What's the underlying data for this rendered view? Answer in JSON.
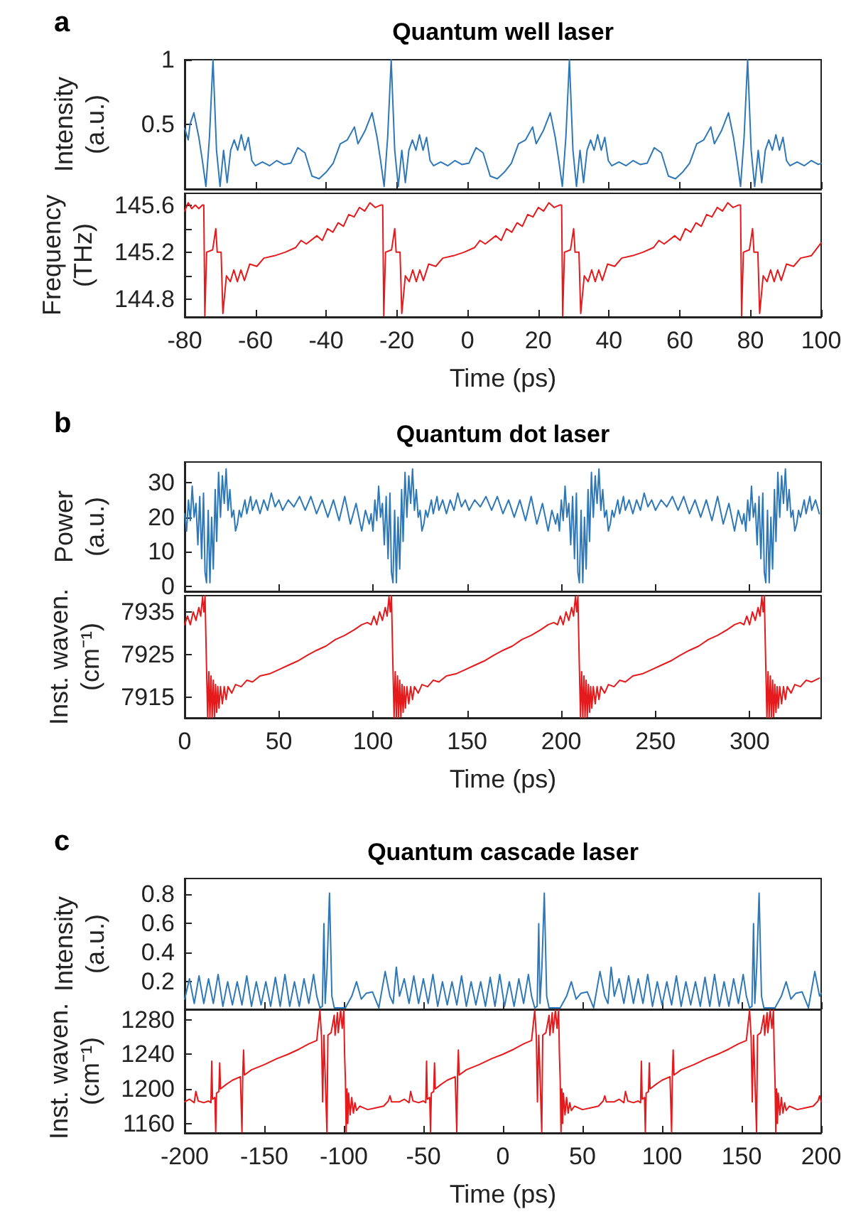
{
  "chart_data": [
    {
      "type": "line",
      "title": "Quantum well laser",
      "annotations": [
        "a"
      ],
      "ylabel": "Intensity (a.u.)",
      "xlim": [
        -80,
        100
      ],
      "xticks": [
        -80,
        -60,
        -40,
        -20,
        0,
        20,
        40,
        60,
        80,
        100
      ],
      "ylim": [
        0,
        1
      ],
      "yticks": [
        0.5,
        1
      ],
      "tick_labels": "y",
      "series": [
        {
          "color": "#2e78b7",
          "x": [
            -80,
            -79,
            -78.5,
            -77.4,
            -76,
            -75,
            -74,
            -73,
            -72,
            -71,
            -70,
            -69,
            -68,
            -67,
            -66,
            -65,
            -64,
            -63,
            -62,
            -61,
            -60,
            -58,
            -56,
            -54,
            -52,
            -50,
            -48,
            -46,
            -44,
            -42,
            -40,
            -38,
            -36,
            -34,
            -32,
            -31,
            -29,
            -27.0,
            -25.6,
            -24.6,
            -23.6,
            -22.6,
            -21.6,
            -20.6,
            -19.6,
            -18.6,
            -17.6,
            -16.6,
            -15.6,
            -14.6,
            -13.6,
            -12.6,
            -11.6,
            -10.6,
            -9.6,
            -7.6,
            -5.6,
            -3.6,
            -1.6,
            0.4,
            2.4,
            4.4,
            6.4,
            8.4,
            10.4,
            12.4,
            14.4,
            16.4,
            18.4,
            19.4,
            21.4,
            23.4,
            24.8,
            25.8,
            26.8,
            27.8,
            28.8,
            29.8,
            30.8,
            31.8,
            32.8,
            33.8,
            34.8,
            35.8,
            36.8,
            37.8,
            38.8,
            39.8,
            40.8,
            42.8,
            44.8,
            46.8,
            48.8,
            50.8,
            52.8,
            54.8,
            56.8,
            58.8,
            60.8,
            62.8,
            64.8,
            66.8,
            68.8,
            69.8,
            71.8,
            73.8,
            75.2,
            76.2,
            77.2,
            78.2,
            79.2,
            80.2,
            81.2,
            82.2,
            83.2,
            84.2,
            85.2,
            86.2,
            87.2,
            88.2,
            89.2,
            90.2,
            91.2,
            93.2,
            95.2,
            97.2,
            99.2,
            100
          ],
          "values": [
            0.47,
            0.38,
            0.5,
            0.59,
            0.4,
            0.22,
            0.02,
            0.4,
            1.0,
            0.3,
            0.02,
            0.3,
            0.05,
            0.3,
            0.38,
            0.3,
            0.42,
            0.3,
            0.4,
            0.22,
            0.18,
            0.21,
            0.18,
            0.22,
            0.19,
            0.2,
            0.32,
            0.28,
            0.1,
            0.08,
            0.13,
            0.2,
            0.35,
            0.38,
            0.48,
            0.35,
            0.45,
            0.59,
            0.4,
            0.22,
            0.02,
            0.4,
            1.0,
            0.3,
            0.02,
            0.3,
            0.05,
            0.3,
            0.38,
            0.3,
            0.42,
            0.3,
            0.4,
            0.22,
            0.18,
            0.21,
            0.18,
            0.22,
            0.19,
            0.2,
            0.32,
            0.28,
            0.1,
            0.08,
            0.13,
            0.2,
            0.35,
            0.38,
            0.48,
            0.35,
            0.45,
            0.59,
            0.4,
            0.22,
            0.02,
            0.4,
            1.0,
            0.3,
            0.02,
            0.3,
            0.05,
            0.3,
            0.38,
            0.3,
            0.42,
            0.3,
            0.4,
            0.22,
            0.18,
            0.21,
            0.18,
            0.22,
            0.19,
            0.2,
            0.32,
            0.28,
            0.1,
            0.08,
            0.13,
            0.2,
            0.35,
            0.38,
            0.48,
            0.35,
            0.45,
            0.59,
            0.4,
            0.22,
            0.02,
            0.4,
            1.0,
            0.3,
            0.02,
            0.3,
            0.05,
            0.3,
            0.38,
            0.3,
            0.42,
            0.3,
            0.4,
            0.22,
            0.18,
            0.21,
            0.18,
            0.22,
            0.19,
            0.2
          ]
        }
      ]
    },
    {
      "type": "line",
      "ylabel": "Frequency (THz)",
      "xlabel": "Time (ps)",
      "xlim": [
        -80,
        100
      ],
      "xticks": [
        -80,
        -60,
        -40,
        -20,
        0,
        20,
        40,
        60,
        80,
        100
      ],
      "ylim": [
        144.65,
        145.7
      ],
      "yticks": [
        144.8,
        {
          "value": 145,
          "label": null
        },
        145.2,
        {
          "value": 145.4,
          "label": null
        },
        145.6
      ],
      "series": [
        {
          "color": "#e41a1c",
          "x": [
            -80,
            -79,
            -78,
            -77,
            -76,
            -75,
            -74.6,
            -74.3,
            -73.8,
            -72.1,
            -71.2,
            -70.8,
            -69.7,
            -69.2,
            -68.2,
            -67.1,
            -66.1,
            -65.1,
            -64.1,
            -63.1,
            -61.6,
            -59.6,
            -57.6,
            -54.6,
            -51.6,
            -48.6,
            -47.1,
            -45.6,
            -42.6,
            -41.1,
            -39.6,
            -38.1,
            -36.6,
            -35.1,
            -33.6,
            -32.1,
            -30.6,
            -29.1,
            -27.6,
            -26.1,
            -24.6,
            -24.0,
            -23.7,
            -23.2,
            -21.5,
            -20.6,
            -20.2,
            -19.1,
            -18.6,
            -17.6,
            -16.5,
            -15.5,
            -14.5,
            -13.5,
            -12.5,
            -11.0,
            -9.0,
            -7.0,
            -4.0,
            -1.0,
            2.0,
            3.5,
            5.0,
            8.0,
            9.5,
            11.0,
            12.5,
            14.0,
            15.5,
            17.0,
            18.5,
            20.0,
            21.5,
            23.0,
            24.5,
            26.0,
            26.6,
            26.9,
            27.4,
            29.1,
            30.0,
            30.4,
            31.5,
            32.0,
            33.0,
            34.1,
            35.1,
            36.1,
            37.1,
            38.1,
            39.6,
            41.6,
            43.6,
            46.6,
            49.6,
            52.6,
            54.1,
            55.6,
            58.6,
            60.1,
            61.6,
            63.1,
            64.6,
            66.1,
            67.6,
            69.1,
            70.6,
            72.1,
            73.6,
            75.1,
            76.6,
            77.2,
            77.5,
            78.0,
            79.7,
            80.6,
            81.0,
            82.1,
            82.6,
            83.6,
            84.7,
            85.7,
            86.7,
            87.7,
            88.7,
            90.2,
            92.2,
            94.2,
            97.2,
            100
          ],
          "values": [
            145.55,
            145.62,
            145.57,
            145.6,
            145.57,
            145.6,
            145.6,
            144.66,
            145.2,
            145.22,
            145.4,
            145.2,
            145.2,
            144.68,
            145.0,
            144.95,
            145.05,
            144.95,
            145.05,
            144.96,
            145.1,
            145.08,
            145.15,
            145.17,
            145.2,
            145.24,
            145.3,
            145.27,
            145.34,
            145.3,
            145.4,
            145.37,
            145.45,
            145.42,
            145.52,
            145.5,
            145.58,
            145.55,
            145.62,
            145.58,
            145.6,
            145.6,
            144.66,
            145.2,
            145.22,
            145.4,
            145.2,
            145.2,
            144.68,
            145.0,
            144.95,
            145.05,
            144.95,
            145.05,
            144.96,
            145.1,
            145.08,
            145.15,
            145.17,
            145.2,
            145.24,
            145.3,
            145.27,
            145.34,
            145.3,
            145.4,
            145.37,
            145.45,
            145.42,
            145.52,
            145.5,
            145.58,
            145.55,
            145.62,
            145.58,
            145.6,
            145.6,
            144.66,
            145.2,
            145.22,
            145.4,
            145.2,
            145.2,
            144.68,
            145.0,
            144.95,
            145.05,
            144.95,
            145.05,
            144.96,
            145.1,
            145.08,
            145.15,
            145.17,
            145.2,
            145.24,
            145.3,
            145.27,
            145.34,
            145.3,
            145.4,
            145.37,
            145.45,
            145.42,
            145.52,
            145.5,
            145.58,
            145.55,
            145.62,
            145.58,
            145.6,
            145.6,
            144.66,
            145.2,
            145.22,
            145.4,
            145.2,
            145.2,
            144.68,
            145.0,
            144.95,
            145.05,
            144.95,
            145.05,
            144.96,
            145.1,
            145.08,
            145.15,
            145.17,
            145.28
          ]
        }
      ]
    },
    {
      "type": "line",
      "title": "Quantum dot laser",
      "annotations": [
        "b"
      ],
      "ylabel": "Power (a.u.)",
      "xlim": [
        0,
        338
      ],
      "xticks": [
        0,
        50,
        100,
        150,
        200,
        250,
        300
      ],
      "ylim": [
        -1.5,
        36
      ],
      "yticks": [
        0,
        10,
        20,
        30
      ],
      "tick_labels": "y",
      "series": [
        {
          "color": "#2e78b7",
          "x": [
            0,
            1,
            2,
            3,
            4,
            5,
            6,
            7,
            8,
            9,
            10,
            10.8,
            11.6,
            12.5,
            13.4,
            14.3,
            15.2,
            16.2,
            17,
            18,
            19,
            20,
            21,
            22,
            23,
            24,
            25,
            26,
            27,
            28,
            29,
            30,
            32,
            33,
            35,
            36,
            38,
            40,
            42,
            44,
            46,
            48,
            50,
            52,
            55,
            58,
            61,
            64,
            67,
            70,
            73,
            76,
            79,
            82,
            85,
            88,
            91,
            94,
            96,
            98,
            99,
            100,
            101,
            102,
            103,
            104,
            105,
            106,
            107,
            108,
            109,
            109.8,
            110.6,
            111.5,
            112.4,
            113.3,
            114.2,
            115.2,
            116,
            117,
            118,
            119,
            120,
            121,
            122,
            123,
            124,
            125,
            126,
            127,
            128,
            129,
            131,
            132,
            134,
            135,
            137,
            139,
            141,
            143,
            145,
            147,
            149,
            151,
            154,
            157,
            160,
            163,
            166,
            169,
            172,
            175,
            178,
            181,
            184,
            187,
            190,
            193,
            195,
            197,
            198,
            199,
            200,
            201,
            202,
            203,
            204,
            205,
            206,
            207,
            208,
            208.8,
            209.6,
            210.5,
            211.4,
            212.3,
            213.2,
            214.2,
            215,
            216,
            217,
            218,
            219,
            220,
            221,
            222,
            223,
            224,
            225,
            226,
            227,
            228,
            230,
            231,
            233,
            234,
            236,
            238,
            240,
            242,
            244,
            246,
            248,
            250,
            253,
            256,
            259,
            262,
            265,
            268,
            271,
            274,
            277,
            280,
            283,
            286,
            289,
            292,
            294,
            296,
            297,
            298,
            299,
            300,
            301,
            302,
            303,
            304,
            305,
            306,
            307,
            307.8,
            308.6,
            309.5,
            310.4,
            311.3,
            312.2,
            313.2,
            314,
            315,
            316,
            317,
            318,
            319,
            320,
            321,
            322,
            323,
            324,
            325,
            326,
            327,
            329,
            330,
            332,
            333,
            335,
            337
          ],
          "values": [
            21,
            16,
            25,
            19,
            29,
            20,
            24,
            12,
            26,
            8,
            27,
            4,
            1,
            22,
            1,
            20,
            5,
            28,
            13,
            33,
            20,
            32,
            24,
            34,
            22,
            28,
            20,
            22,
            16,
            18,
            22,
            20,
            25,
            21,
            26,
            22,
            25,
            21,
            25,
            22,
            27,
            23,
            25,
            22,
            25,
            23,
            26,
            22,
            26,
            21,
            25,
            20,
            25,
            19,
            26,
            18,
            24,
            16,
            22,
            18,
            21,
            16,
            25,
            19,
            29,
            20,
            24,
            12,
            26,
            8,
            27,
            4,
            1,
            22,
            1,
            20,
            5,
            28,
            13,
            33,
            20,
            32,
            24,
            34,
            22,
            28,
            20,
            22,
            16,
            18,
            22,
            20,
            25,
            21,
            26,
            22,
            25,
            21,
            25,
            22,
            27,
            23,
            25,
            22,
            25,
            23,
            26,
            22,
            26,
            21,
            25,
            20,
            25,
            19,
            26,
            18,
            24,
            16,
            22,
            18,
            21,
            16,
            25,
            19,
            29,
            20,
            24,
            12,
            26,
            8,
            27,
            4,
            1,
            22,
            1,
            20,
            5,
            28,
            13,
            33,
            20,
            32,
            24,
            34,
            22,
            28,
            20,
            22,
            16,
            18,
            22,
            20,
            25,
            21,
            26,
            22,
            25,
            21,
            25,
            22,
            27,
            23,
            25,
            22,
            25,
            23,
            26,
            22,
            26,
            21,
            25,
            20,
            25,
            19,
            26,
            18,
            24,
            16,
            22,
            18,
            21,
            16,
            25,
            19,
            29,
            20,
            24,
            12,
            26,
            8,
            27,
            4,
            1,
            22,
            1,
            20,
            5,
            28,
            13,
            33,
            20,
            32,
            24,
            34,
            22,
            28,
            20,
            22,
            16,
            18,
            22,
            20,
            25,
            21,
            26,
            22,
            25,
            21
          ]
        }
      ]
    },
    {
      "type": "line",
      "ylabel": "Inst. waven. (cm⁻¹)",
      "xlabel": "Time (ps)",
      "xlim": [
        0,
        338
      ],
      "xticks": [
        0,
        50,
        100,
        150,
        200,
        250,
        300
      ],
      "ylim": [
        7910.2,
        7938.8
      ],
      "yticks": [
        7915,
        7925,
        7935
      ],
      "series": [
        {
          "color": "#e41a1c",
          "x": [
            0,
            1.5,
            3,
            4.5,
            6,
            7.5,
            8.5,
            9.5,
            10.2,
            10.8,
            11.6,
            12.2,
            12.8,
            13.4,
            14,
            14.6,
            15.2,
            15.8,
            16.4,
            17,
            17.6,
            18.2,
            19,
            20,
            21,
            22,
            23,
            25,
            27,
            30,
            33,
            36,
            40,
            45,
            50,
            55,
            60,
            65,
            70,
            75,
            80,
            85,
            90,
            94,
            97,
            99,
            100.5,
            102,
            103.5,
            105,
            106.5,
            107.5,
            108.5,
            109.2,
            109.8,
            110.6,
            111.2,
            111.8,
            112.4,
            113,
            113.6,
            114.2,
            114.8,
            115.4,
            116,
            116.6,
            117.2,
            118,
            119,
            120,
            121,
            122,
            124,
            126,
            129,
            132,
            135,
            139,
            144,
            149,
            154,
            159,
            164,
            169,
            174,
            179,
            184,
            189,
            193,
            196,
            198,
            199.5,
            201,
            202.5,
            204,
            205.5,
            206.5,
            207.5,
            208.2,
            208.8,
            209.6,
            210.2,
            210.8,
            211.4,
            212,
            212.6,
            213.2,
            213.8,
            214.4,
            215,
            215.6,
            216.2,
            217,
            218,
            219,
            220,
            221,
            223,
            225,
            228,
            231,
            234,
            238,
            243,
            248,
            253,
            258,
            263,
            268,
            273,
            278,
            283,
            288,
            292,
            295,
            297,
            298.5,
            300,
            301.5,
            303,
            304.5,
            305.5,
            306.5,
            307.2,
            307.8,
            308.6,
            309.2,
            309.8,
            310.4,
            311,
            311.6,
            312.2,
            312.8,
            313.4,
            314,
            314.6,
            315.2,
            316,
            317,
            318,
            319,
            320,
            322,
            324,
            327,
            330,
            333,
            337
          ],
          "values": [
            7932,
            7934,
            7932,
            7935,
            7933,
            7936,
            7934,
            7938.5,
            7935,
            7938.7,
            7922,
            7910.3,
            7921,
            7910.3,
            7920,
            7910.3,
            7919,
            7910.5,
            7918,
            7911.5,
            7917.5,
            7912.5,
            7917.5,
            7913.5,
            7917.5,
            7914.5,
            7917.5,
            7916,
            7918,
            7917.5,
            7919,
            7918.6,
            7920,
            7920.5,
            7921.5,
            7922.5,
            7923.5,
            7924.8,
            7926,
            7927,
            7928.5,
            7929.5,
            7930.8,
            7932,
            7932.5,
            7932,
            7934,
            7932,
            7935,
            7933,
            7936,
            7934,
            7938.5,
            7935,
            7938.7,
            7922,
            7910.3,
            7921,
            7910.3,
            7920,
            7910.3,
            7919,
            7910.5,
            7918,
            7911.5,
            7917.5,
            7912.5,
            7917.5,
            7913.5,
            7917.5,
            7914.5,
            7917.5,
            7916,
            7918,
            7917.5,
            7919,
            7918.6,
            7920,
            7920.5,
            7921.5,
            7922.5,
            7923.5,
            7924.8,
            7926,
            7927,
            7928.5,
            7929.5,
            7930.8,
            7932,
            7932.5,
            7932,
            7934,
            7932,
            7935,
            7933,
            7936,
            7934,
            7938.5,
            7935,
            7938.7,
            7922,
            7910.3,
            7921,
            7910.3,
            7920,
            7910.3,
            7919,
            7910.5,
            7918,
            7911.5,
            7917.5,
            7912.5,
            7917.5,
            7913.5,
            7917.5,
            7914.5,
            7917.5,
            7916,
            7918,
            7917.5,
            7919,
            7918.6,
            7920,
            7920.5,
            7921.5,
            7922.5,
            7923.5,
            7924.8,
            7926,
            7927,
            7928.5,
            7929.5,
            7930.8,
            7932,
            7932.5,
            7932,
            7934,
            7932,
            7935,
            7933,
            7936,
            7934,
            7938.5,
            7935,
            7938.7,
            7922,
            7910.3,
            7921,
            7910.3,
            7920,
            7910.3,
            7919,
            7910.5,
            7918,
            7911.5,
            7917.5,
            7912.5,
            7917.5,
            7913.5,
            7917.5,
            7914.5,
            7917.5,
            7916,
            7918,
            7917.5,
            7919,
            7918.6,
            7919.5
          ]
        }
      ]
    },
    {
      "type": "line",
      "title": "Quantum cascade laser",
      "annotations": [
        "c"
      ],
      "ylabel": "Intensity (a.u.)",
      "xlim": [
        -200,
        200
      ],
      "xticks": [
        -200,
        -150,
        -100,
        -50,
        0,
        50,
        100,
        150,
        200
      ],
      "ylim": [
        0.01,
        0.91
      ],
      "yticks": [
        0.2,
        0.4,
        0.6,
        0.8
      ],
      "tick_labels": "y",
      "series": [
        {
          "color": "#2e78b7",
          "x": [
            -200,
            -197,
            -194,
            -191,
            -188,
            -185,
            -182,
            -179,
            -176,
            -173,
            -170,
            -167,
            -164,
            -161,
            -158,
            -155,
            -152,
            -149,
            -146,
            -143,
            -140,
            -137,
            -134,
            -131,
            -128,
            -125,
            -122,
            -119,
            -117,
            -115,
            -113.5,
            -112.5,
            -111.7,
            -110.5,
            -109,
            -107.5,
            -106,
            -99,
            -95,
            -92,
            -89,
            -86,
            -82,
            -78,
            -74,
            -71,
            -69,
            -67,
            -65,
            -62,
            -59,
            -56,
            -53,
            -50,
            -47,
            -44,
            -41,
            -38,
            -35,
            -32,
            -29,
            -26,
            -23,
            -20,
            -17,
            -14,
            -11,
            -8,
            -5,
            -2,
            1,
            4,
            7,
            10,
            13,
            16,
            18,
            20,
            21.5,
            22.5,
            23.3,
            24.5,
            26,
            27.5,
            29,
            36,
            40,
            43,
            46,
            49,
            53,
            57,
            61,
            64,
            66,
            68,
            70,
            73,
            76,
            79,
            82,
            85,
            88,
            91,
            94,
            97,
            100,
            103,
            106,
            109,
            112,
            115,
            118,
            121,
            124,
            127,
            130,
            133,
            136,
            139,
            142,
            145,
            148,
            151,
            153,
            155,
            156.5,
            157.5,
            158.3,
            159.5,
            161,
            162.5,
            164,
            171,
            175,
            178,
            181,
            184,
            188,
            192,
            196,
            199,
            200
          ],
          "values": [
            0.08,
            0.22,
            0.05,
            0.24,
            0.05,
            0.22,
            0.05,
            0.25,
            0.03,
            0.2,
            0.04,
            0.2,
            0.04,
            0.24,
            0.03,
            0.2,
            0.04,
            0.2,
            0.03,
            0.23,
            0.03,
            0.25,
            0.03,
            0.2,
            0.03,
            0.22,
            0.05,
            0.25,
            0.1,
            0.02,
            0.03,
            0.6,
            0.05,
            0.3,
            0.81,
            0.1,
            0.02,
            0.02,
            0.1,
            0.2,
            0.08,
            0.12,
            0.13,
            0.02,
            0.27,
            0.1,
            0.05,
            0.3,
            0.1,
            0.22,
            0.05,
            0.24,
            0.05,
            0.22,
            0.05,
            0.25,
            0.03,
            0.2,
            0.04,
            0.2,
            0.04,
            0.24,
            0.03,
            0.2,
            0.04,
            0.2,
            0.03,
            0.23,
            0.03,
            0.25,
            0.03,
            0.2,
            0.03,
            0.22,
            0.05,
            0.25,
            0.1,
            0.02,
            0.03,
            0.6,
            0.05,
            0.3,
            0.81,
            0.1,
            0.02,
            0.02,
            0.1,
            0.2,
            0.08,
            0.12,
            0.13,
            0.02,
            0.27,
            0.1,
            0.05,
            0.3,
            0.1,
            0.22,
            0.05,
            0.24,
            0.05,
            0.22,
            0.05,
            0.25,
            0.03,
            0.2,
            0.04,
            0.2,
            0.04,
            0.24,
            0.03,
            0.2,
            0.04,
            0.2,
            0.03,
            0.23,
            0.03,
            0.25,
            0.03,
            0.2,
            0.03,
            0.22,
            0.05,
            0.25,
            0.1,
            0.02,
            0.03,
            0.6,
            0.05,
            0.3,
            0.81,
            0.1,
            0.02,
            0.02,
            0.1,
            0.2,
            0.08,
            0.12,
            0.13,
            0.02,
            0.27,
            0.1,
            0.12
          ]
        }
      ]
    },
    {
      "type": "line",
      "ylabel": "Inst. waven. (cm⁻¹)",
      "xlabel": "Time (ps)",
      "xlim": [
        -200,
        200
      ],
      "xticks": [
        -200,
        -150,
        -100,
        -50,
        0,
        50,
        100,
        150,
        200
      ],
      "ylim": [
        1149,
        1292
      ],
      "yticks": [
        1160,
        1200,
        1240,
        1280
      ],
      "series": [
        {
          "color": "#e41a1c",
          "x": [
            -200,
            -197,
            -194,
            -193,
            -191.5,
            -188,
            -185,
            -183.5,
            -183,
            -182.5,
            -181,
            -180.5,
            -180,
            -178.5,
            -178,
            -177.5,
            -174,
            -170,
            -165,
            -164,
            -163.5,
            -163,
            -162.5,
            -158,
            -150,
            -142,
            -135,
            -128,
            -122,
            -117,
            -115,
            -114,
            -113.3,
            -112.5,
            -110.6,
            -110,
            -108,
            -106,
            -105.5,
            -104,
            -103.5,
            -102,
            -101,
            -100,
            -99.5,
            -99,
            -98.5,
            -98,
            -97.5,
            -97,
            -96,
            -95,
            -94,
            -93,
            -92,
            -90,
            -85,
            -80,
            -75,
            -72,
            -71,
            -70,
            -67,
            -65,
            -62,
            -59,
            -58,
            -56.5,
            -53,
            -50,
            -48.5,
            -48,
            -47.5,
            -46,
            -45.5,
            -45,
            -43.5,
            -43,
            -42.5,
            -39,
            -35,
            -30,
            -29,
            -28.5,
            -28,
            -27.5,
            -23,
            -15,
            -7,
            0,
            7,
            13,
            18,
            20,
            21,
            21.7,
            22.5,
            24.4,
            25,
            27,
            29,
            29.5,
            31,
            31.5,
            33,
            34,
            35,
            35.5,
            36,
            36.5,
            37,
            37.5,
            38,
            39,
            40,
            41,
            42,
            43,
            45,
            50,
            55,
            60,
            63,
            64,
            65,
            68,
            70,
            73,
            76,
            77,
            78.5,
            82,
            85,
            86.5,
            87,
            87.5,
            89,
            89.5,
            90,
            91.5,
            92,
            92.5,
            96,
            100,
            105,
            106,
            106.5,
            107,
            107.5,
            112,
            120,
            128,
            135,
            142,
            148,
            153,
            155,
            156,
            156.7,
            157.5,
            159.4,
            160,
            162,
            164,
            164.5,
            166,
            166.5,
            168,
            169,
            170,
            170.5,
            171,
            171.5,
            172,
            172.5,
            173,
            174,
            175,
            176,
            177,
            178,
            180,
            185,
            190,
            195,
            198,
            199,
            200
          ],
          "values": [
            1185,
            1188,
            1184,
            1197,
            1186,
            1184,
            1186,
            1184,
            1232,
            1188,
            1190,
            1150,
            1195,
            1197,
            1230,
            1200,
            1205,
            1210,
            1214,
            1150,
            1218,
            1245,
            1216,
            1222,
            1228,
            1235,
            1240,
            1246,
            1252,
            1256,
            1291,
            1260,
            1185,
            1262,
            1150,
            1262,
            1265,
            1285,
            1262,
            1288,
            1265,
            1291,
            1270,
            1291,
            1240,
            1210,
            1150,
            1200,
            1160,
            1195,
            1170,
            1190,
            1172,
            1184,
            1175,
            1180,
            1176,
            1178,
            1180,
            1186,
            1192,
            1185,
            1185,
            1185,
            1188,
            1184,
            1197,
            1186,
            1184,
            1186,
            1184,
            1232,
            1188,
            1190,
            1150,
            1195,
            1197,
            1230,
            1200,
            1205,
            1210,
            1214,
            1150,
            1218,
            1245,
            1216,
            1222,
            1228,
            1235,
            1240,
            1246,
            1252,
            1256,
            1291,
            1260,
            1185,
            1262,
            1150,
            1262,
            1265,
            1285,
            1262,
            1288,
            1265,
            1291,
            1270,
            1291,
            1240,
            1210,
            1150,
            1200,
            1160,
            1195,
            1170,
            1190,
            1172,
            1184,
            1175,
            1180,
            1176,
            1178,
            1180,
            1186,
            1192,
            1185,
            1185,
            1185,
            1188,
            1184,
            1197,
            1186,
            1184,
            1186,
            1184,
            1232,
            1188,
            1190,
            1150,
            1195,
            1197,
            1230,
            1200,
            1205,
            1210,
            1214,
            1150,
            1218,
            1245,
            1216,
            1222,
            1228,
            1235,
            1240,
            1246,
            1252,
            1256,
            1291,
            1260,
            1185,
            1262,
            1150,
            1262,
            1265,
            1285,
            1262,
            1288,
            1265,
            1291,
            1270,
            1291,
            1240,
            1210,
            1150,
            1200,
            1160,
            1195,
            1170,
            1190,
            1172,
            1184,
            1175,
            1180,
            1176,
            1178,
            1180,
            1186,
            1192,
            1185
          ]
        }
      ]
    }
  ]
}
